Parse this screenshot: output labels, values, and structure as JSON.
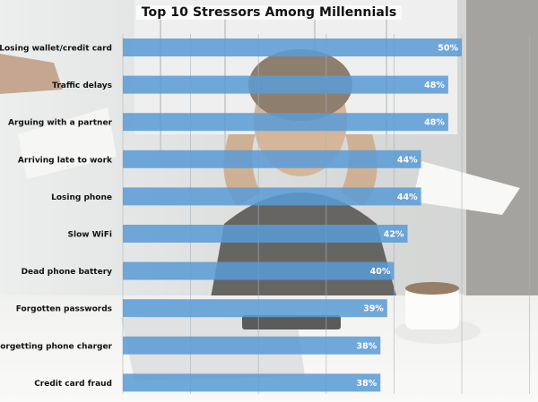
{
  "chart_data": {
    "type": "bar",
    "orientation": "horizontal",
    "title": "Top 10 Stressors Among Millennials",
    "categories": [
      "Losing wallet/credit card",
      "Traffic delays",
      "Arguing with a partner",
      "Arriving late to work",
      "Losing phone",
      "Slow WiFi",
      "Dead phone battery",
      "Forgotten passwords",
      "Forgetting phone charger",
      "Credit card fraud"
    ],
    "values": [
      50,
      48,
      48,
      44,
      44,
      42,
      40,
      39,
      38,
      38
    ],
    "value_labels": [
      "50%",
      "48%",
      "48%",
      "44%",
      "44%",
      "42%",
      "40%",
      "39%",
      "38%",
      "38%"
    ],
    "xlabel": "",
    "ylabel": "",
    "xlim": [
      0,
      60
    ],
    "grid": true,
    "legend": "none",
    "bar_color": "#5b9bd5"
  }
}
